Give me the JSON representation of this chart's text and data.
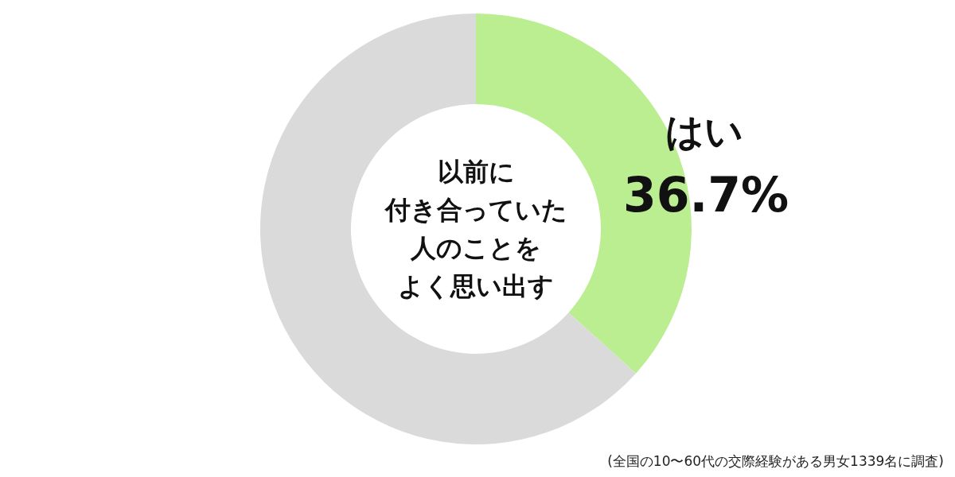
{
  "chart_data": {
    "type": "donut",
    "title": "以前に付き合っていた人のことをよく思い出す",
    "categories": [
      "はい",
      null
    ],
    "values": [
      36.7,
      63.3
    ],
    "value_labels": [
      "36.7%",
      null
    ],
    "colors": [
      "#bbee91",
      "#dadada"
    ],
    "annotations": [
      "(全国の10〜60代の交際経験がある男女1339名に調査)"
    ]
  }
}
